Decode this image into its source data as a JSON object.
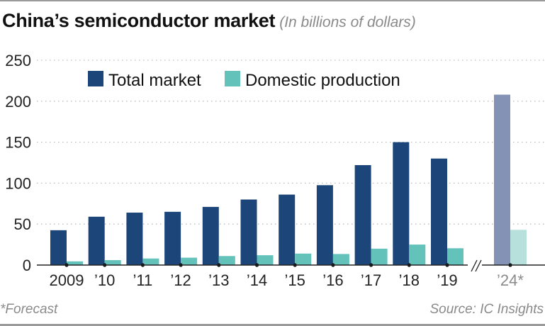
{
  "header": {
    "title": "China’s semiconductor market",
    "subtitle": "(In billions of dollars)"
  },
  "footer": {
    "footnote": "*Forecast",
    "source": "Source: IC Insights"
  },
  "colors": {
    "total": "#1c4679",
    "domestic": "#63c3bb",
    "total_forecast": "#8392b5",
    "domestic_forecast": "#b7e0dc"
  },
  "chart_data": {
    "type": "bar",
    "title": "China’s semiconductor market",
    "subtitle": "(In billions of dollars)",
    "xlabel": "",
    "ylabel": "",
    "ylim": [
      0,
      250
    ],
    "yticks": [
      0,
      50,
      100,
      150,
      200,
      250
    ],
    "grid": true,
    "legend_position": "top-center",
    "categories": [
      "2009",
      "’10",
      "’11",
      "’12",
      "’13",
      "’14",
      "’15",
      "’16",
      "’17",
      "’18",
      "’19",
      "’24*"
    ],
    "forecast_categories": [
      "’24*"
    ],
    "axis_break_before": "’24*",
    "series": [
      {
        "name": "Total market",
        "values": [
          42.5,
          59,
          64,
          65,
          71,
          80,
          86,
          97.5,
          122,
          150,
          130,
          208
        ]
      },
      {
        "name": "Domestic production",
        "values": [
          4.5,
          6,
          8,
          9,
          11,
          12,
          14,
          13.5,
          20,
          25,
          20.5,
          43
        ]
      }
    ],
    "footnote": "*Forecast",
    "source": "Source: IC Insights"
  }
}
